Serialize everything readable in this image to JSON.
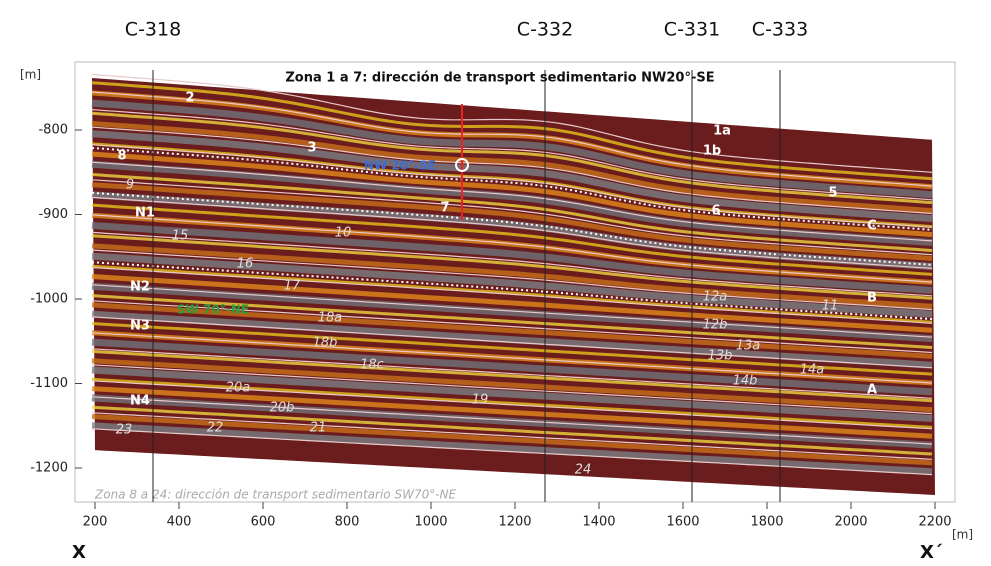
{
  "title": "Zona 1 a 7: dirección de transport sedimentario NW20°-SE",
  "footnote": "Zona 8 a 24: dirección de transport sedimentario SW70°-NE",
  "axes": {
    "y_unit": "[m]",
    "x_unit": "[m]",
    "yticks": [
      -800,
      -900,
      -1000,
      -1100,
      -1200
    ],
    "xticks": [
      200,
      400,
      600,
      800,
      1000,
      1200,
      1400,
      1600,
      1800,
      2000,
      2200
    ]
  },
  "wells": [
    "C-318",
    "C-332",
    "C-331",
    "C-333"
  ],
  "section_ends": [
    "X",
    "X´"
  ],
  "directions": [
    "NW 20°-SE",
    "SW 70°-NE"
  ],
  "layers": [
    "2",
    "3",
    "1a",
    "1b",
    "5",
    "6",
    "7",
    "8",
    "9",
    "10",
    "11",
    "12a",
    "12b",
    "13a",
    "13b",
    "14a",
    "14b",
    "15",
    "16",
    "17",
    "18a",
    "18b",
    "18c",
    "19",
    "20a",
    "20b",
    "21",
    "22",
    "23",
    "24",
    "A",
    "B",
    "C",
    "N1",
    "N2",
    "N3",
    "N4"
  ]
}
